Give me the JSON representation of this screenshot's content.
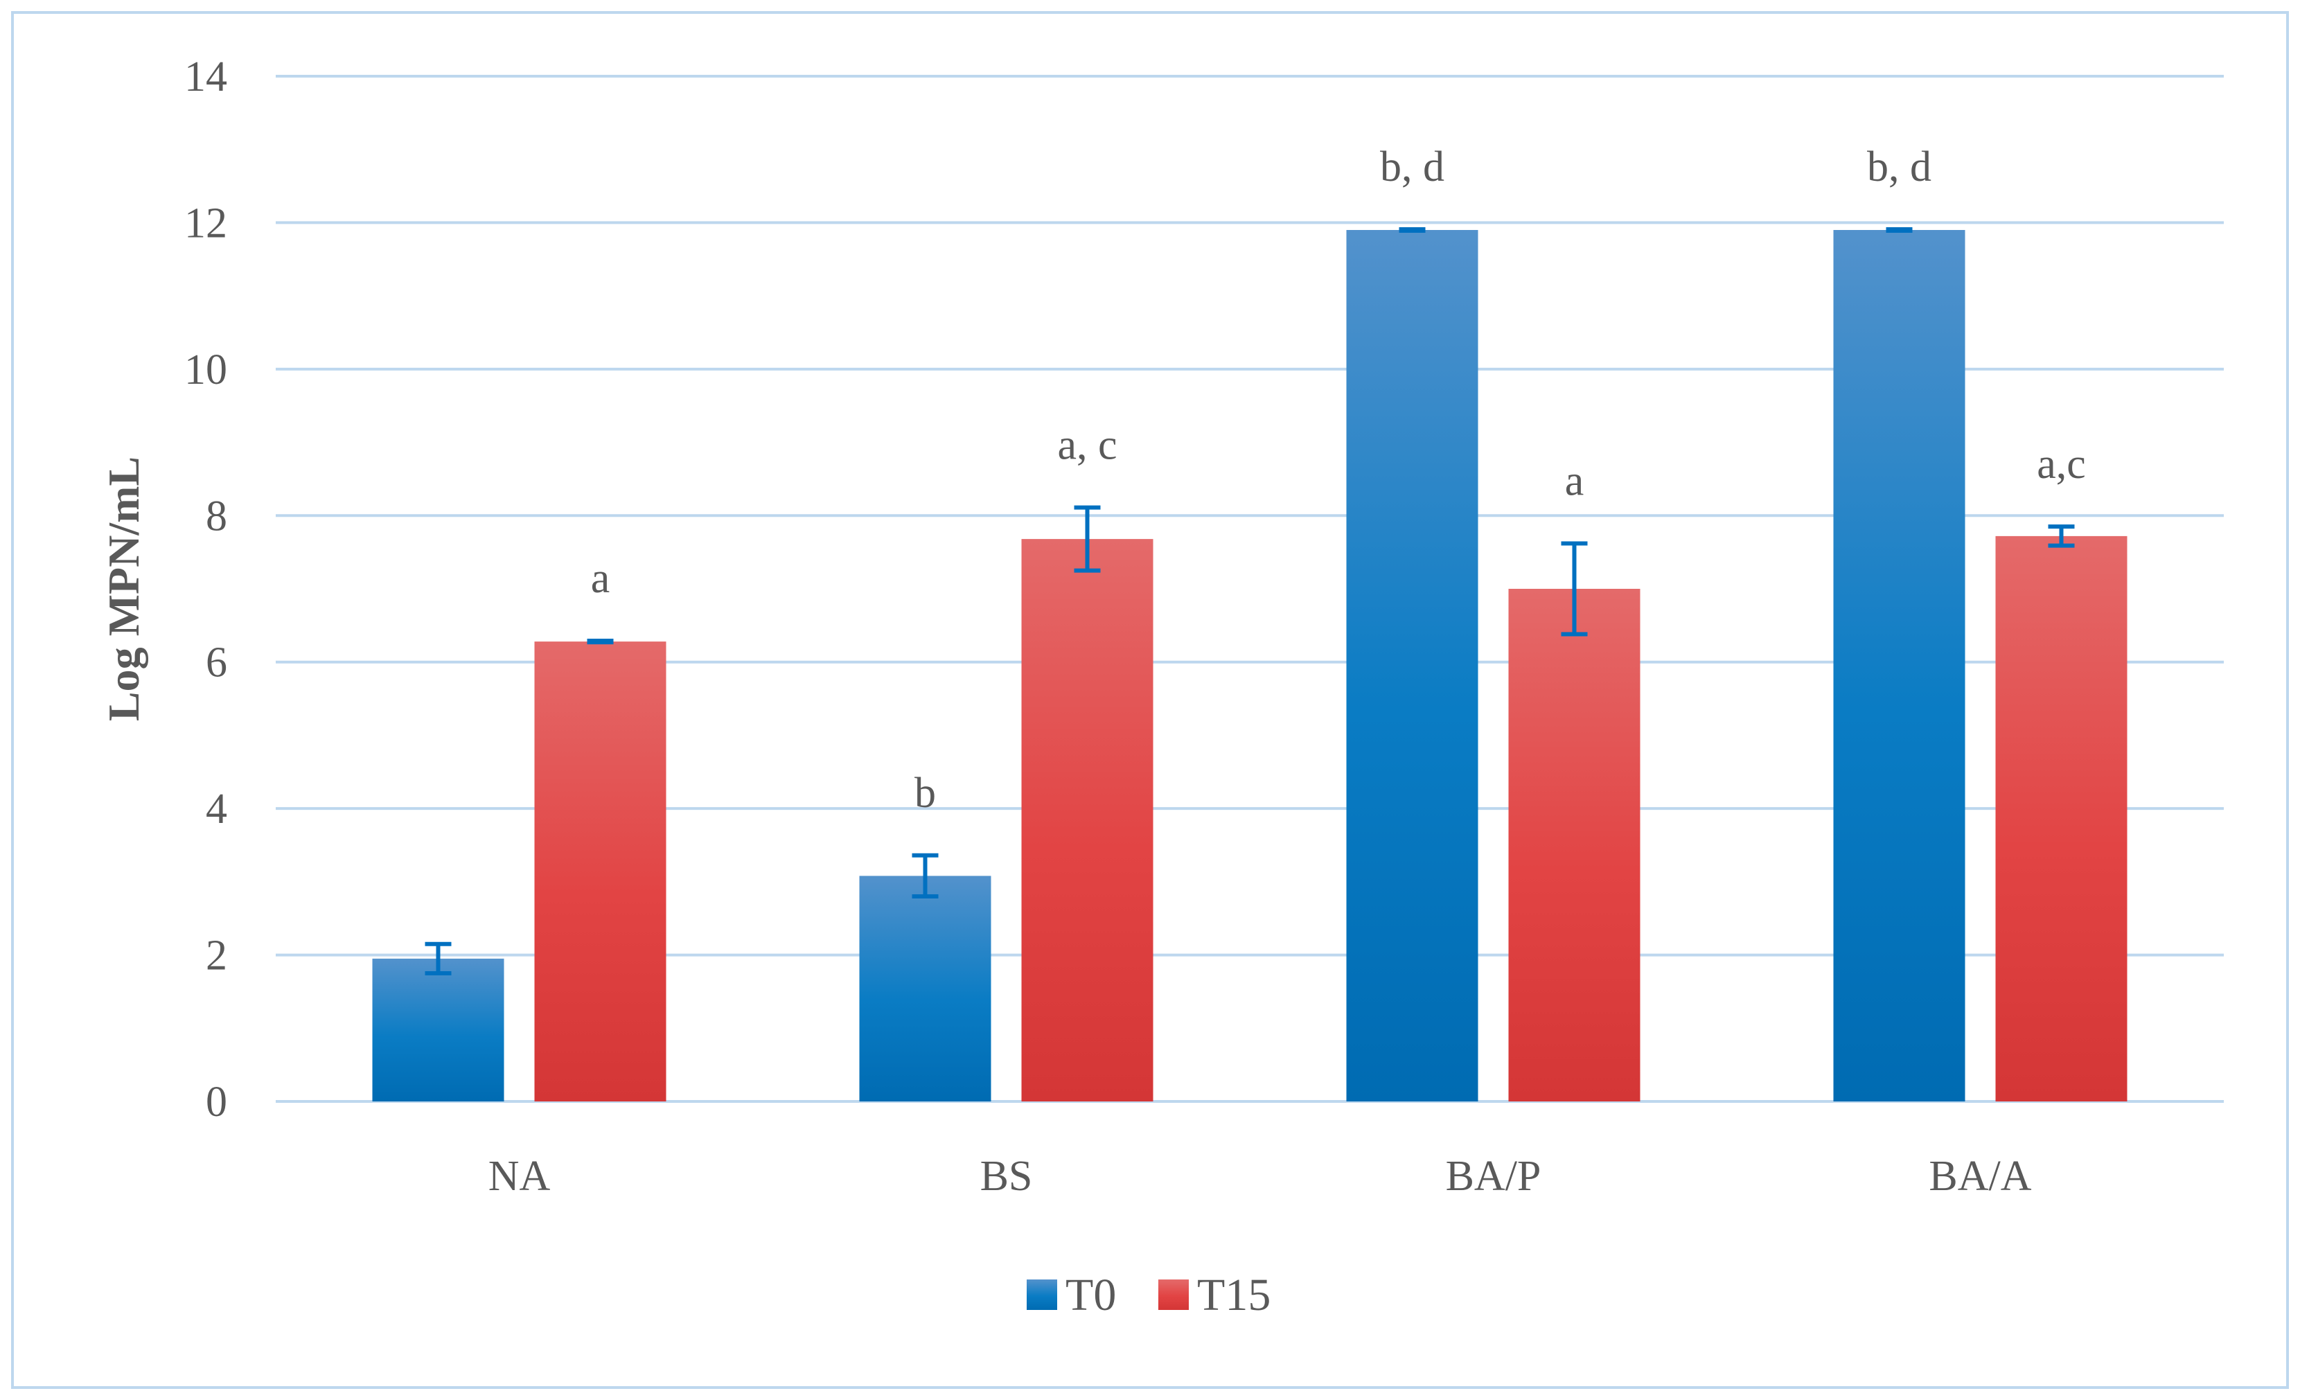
{
  "chart_data": {
    "type": "bar",
    "ylabel": "Log MPN/mL",
    "ylim": [
      0,
      14
    ],
    "yticks": [
      0,
      2,
      4,
      6,
      8,
      10,
      12,
      14
    ],
    "grid": true,
    "legend_position": "bottom",
    "categories": [
      "NA",
      "BS",
      "BA/P",
      "BA/A"
    ],
    "series": [
      {
        "name": "T0",
        "color": "#0070C0",
        "values": [
          1.95,
          3.08,
          11.9,
          11.9
        ],
        "errors": [
          0.2,
          0.28,
          0.01,
          0.01
        ],
        "annotations": [
          "",
          "b",
          "b, d",
          "b, d"
        ]
      },
      {
        "name": "T15",
        "color": "#E03C3C",
        "values": [
          6.28,
          7.68,
          7.0,
          7.72
        ],
        "errors": [
          0.01,
          0.43,
          0.62,
          0.13
        ],
        "annotations": [
          "a",
          "a, c",
          "a",
          "a,c"
        ]
      }
    ],
    "error_bar_color": "#0070C0"
  }
}
